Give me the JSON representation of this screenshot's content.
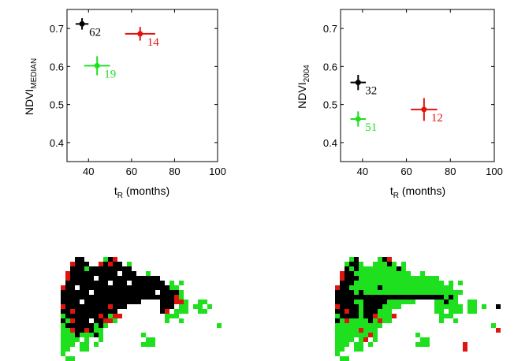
{
  "chart_data": [
    {
      "type": "scatter",
      "title": "",
      "xlabel": {
        "main": "t",
        "sub": "R",
        "rest": " (months)"
      },
      "ylabel": {
        "main": "NDVI",
        "sub": "MEDIAN"
      },
      "xlim": [
        30,
        100
      ],
      "ylim": [
        0.35,
        0.75
      ],
      "xticks": [
        "40",
        "60",
        "80",
        "100"
      ],
      "yticks": [
        "0.4",
        "0.5",
        "0.6",
        "0.7"
      ],
      "grid": false,
      "points": [
        {
          "x": 37,
          "y": 0.712,
          "xerr": 3,
          "yerr": 0.015,
          "label": "62",
          "color": "#000000"
        },
        {
          "x": 64,
          "y": 0.686,
          "xerr": 7,
          "yerr": 0.018,
          "label": "14",
          "color": "#e0140f"
        },
        {
          "x": 44,
          "y": 0.602,
          "xerr": 6,
          "yerr": 0.025,
          "label": "19",
          "color": "#1ee01e"
        }
      ]
    },
    {
      "type": "scatter",
      "title": "",
      "xlabel": {
        "main": "t",
        "sub": "R",
        "rest": " (months)"
      },
      "ylabel": {
        "main": "NDVI",
        "sub": "2004"
      },
      "xlim": [
        30,
        100
      ],
      "ylim": [
        0.35,
        0.75
      ],
      "xticks": [
        "40",
        "60",
        "80",
        "100"
      ],
      "yticks": [
        "0.4",
        "0.5",
        "0.6",
        "0.7"
      ],
      "grid": false,
      "points": [
        {
          "x": 38,
          "y": 0.558,
          "xerr": 3.5,
          "yerr": 0.02,
          "label": "32",
          "color": "#000000"
        },
        {
          "x": 68,
          "y": 0.487,
          "xerr": 6,
          "yerr": 0.03,
          "label": "12",
          "color": "#e0140f"
        },
        {
          "x": 38,
          "y": 0.462,
          "xerr": 3.5,
          "yerr": 0.02,
          "label": "51",
          "color": "#1ee01e"
        }
      ]
    }
  ],
  "maps": {
    "colors": {
      "k": "#000000",
      "r": "#e0140f",
      "g": "#1ee01e"
    },
    "grids": [
      [
        "..................................",
        "...kk....gkr.......................",
        "..rkkk..rkrkk.g....................",
        "..kkkgkkkkkkkkk....................",
        ".rkkkkkkkkkkwkkk..g................",
        ".rkkkkkwkkkkkkkkkkkkk..............",
        ".kkkkkkkkkwkkkwkkkkkkk.g.g.........",
        "rkkwkkkkkkkkkkkkkkkkkkkgg..........",
        "kkkkkkwkkkkkkkkkkkkkwkkkkg.........",
        "kkkkkkkkkkkkkkkkkkkkkkkkrg.........",
        "kkkkwkkkkkkkkkkkk....kkkrrg..gg....",
        "rkkkkkkkkkrkkk.......kkk.gg.gg.g...",
        "kkrkkkkkkkkk.........kr.ggg..gg....",
        "gkkkkkkkrkgrr.........ggg..........",
        "kgrkkkwkkrrg..........g..g.........",
        "gkkkkkkgkg.......................g.",
        "ggrkkrkgg..........................",
        "gggkgggkg........g.................",
        "gggg.g..g.........gg...............",
        "ggg.gg.g.........ggg...............",
        "gg..gg.............................",
        "g..................................",
        ".gg................................"
      ],
      [
        "..................................",
        "...gk....gkr.......................",
        "..gkkg..gggkg.g....................",
        "..kgkggggggggkg....................",
        ".rkkgggggggggggg..g................",
        ".rkkkggggggggggggggggg.............",
        ".kkkggggggggggggggggggg.g.g........",
        "rkkggggggkggggggggggggggg..........",
        "kkkkgkggggggggggggggggggggg........",
        "kkkkkkkkkkkkkkkkkkkkkkkgkg.........",
        "kkkkggkkkkkgggggg....ggkgg..gg.....",
        "rkkkkgkkkkgggg.......gggggg.gg.g..k",
        "kkrkkgkkkggg.........gg.ggg.gg.....",
        "gkkkkgkkrgggr.........ggg..........",
        "kgrggggkgrgg..........g..g.........",
        "gggggggggg.......................g.",
        "gggggrggg.........................r",
        "gggggggrg........g.................",
        "gggg.gr.g.........gg...............",
        "ggg.gg.g.........ggg.......r.......",
        "gg..gg.....................r.......",
        "g..................................",
        ".gg................................"
      ]
    ]
  }
}
